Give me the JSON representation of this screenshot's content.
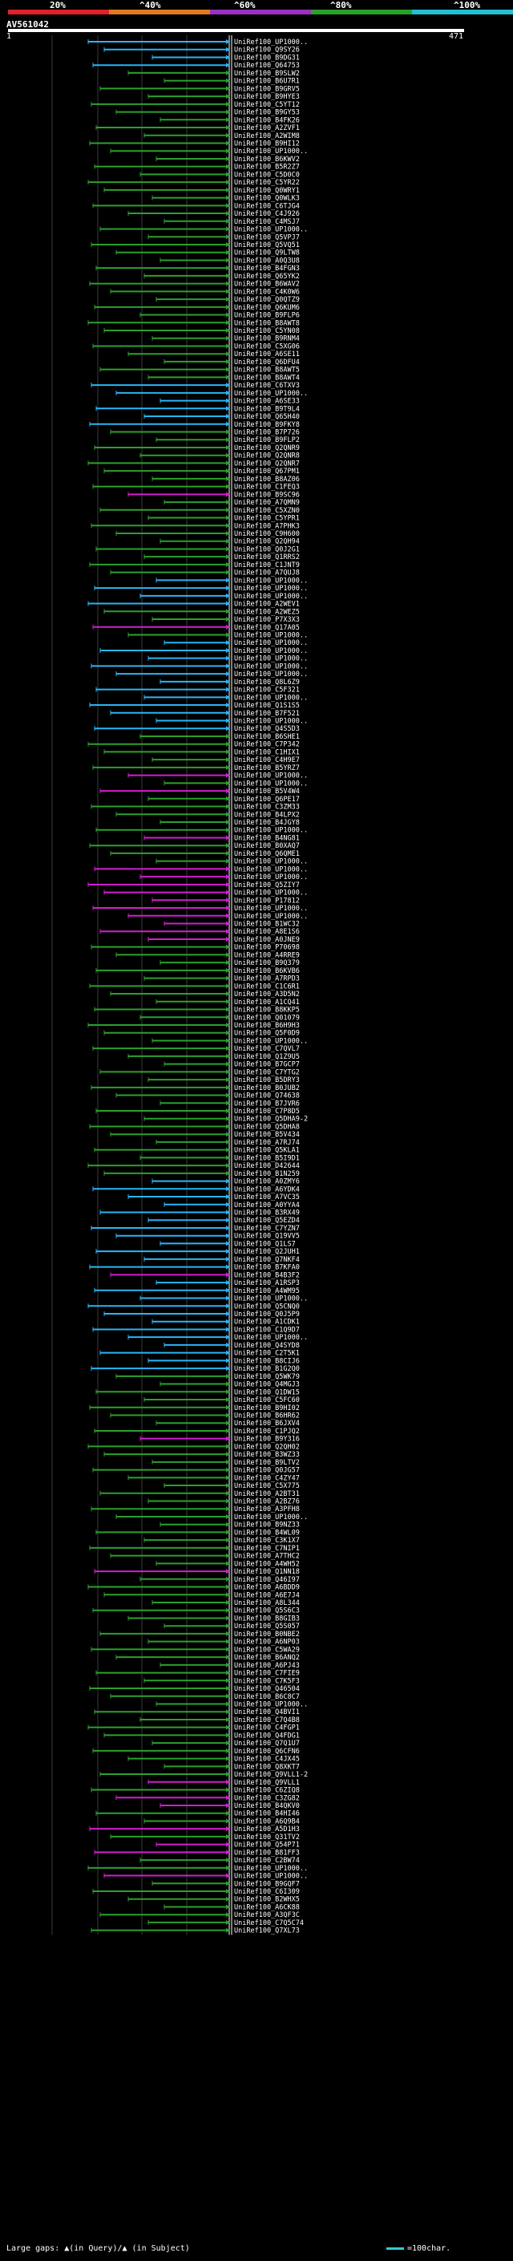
{
  "legend": {
    "colors": [
      "#e0202a",
      "#e07a20",
      "#9b30c0",
      "#2aa02a",
      "#20c0d0"
    ],
    "labels": [
      "20%",
      "^40%",
      "^60%",
      "^80%",
      "^100%"
    ]
  },
  "query": {
    "name": "AV561042",
    "start": "1",
    "end": "471"
  },
  "status_colors": {
    "blue": "#29b6f6",
    "green": "#2ca02c",
    "magenta": "#d21ecf"
  },
  "hits": [
    "UniRef100_UP1000..",
    "UniRef100_Q9SY26",
    "UniRef100_B9DG31",
    "UniRef100_Q64753",
    "UniRef100_B9SLW2",
    "UniRef100_B6U7R1",
    "UniRef100_B9GRV5",
    "UniRef100_B9HYE3",
    "UniRef100_C5YT12",
    "UniRef100_B9GY53",
    "UniRef100_B4FK26",
    "UniRef100_A2ZVF1",
    "UniRef100_A2WIM8",
    "UniRef100_B9HI12",
    "UniRef100_UP1000..",
    "UniRef100_B6KWV2",
    "UniRef100_B5R2Z7",
    "UniRef100_C5D0C0",
    "UniRef100_C5YR22",
    "UniRef100_Q0WRY1",
    "UniRef100_Q0WLK3",
    "UniRef100_C6TJG4",
    "UniRef100_C4J926",
    "UniRef100_C4MSJ7",
    "UniRef100_UP1000..",
    "UniRef100_Q5VPJ7",
    "UniRef100_Q5VQ51",
    "UniRef100_Q9LTW8",
    "UniRef100_A0Q3U8",
    "UniRef100_B4FGN3",
    "UniRef100_Q65YK2",
    "UniRef100_B6WAV2",
    "UniRef100_C4K0W6",
    "UniRef100_Q0QTZ9",
    "UniRef100_Q6KUM6",
    "UniRef100_B9FLP6",
    "UniRef100_B8AWT8",
    "UniRef100_C5YN08",
    "UniRef100_B9RNM4",
    "UniRef100_C5XG06",
    "UniRef100_A6SE11",
    "UniRef100_Q6DFU4",
    "UniRef100_B8AWT5",
    "UniRef100_B8AWT4",
    "UniRef100_C6TXV3",
    "UniRef100_UP1000..",
    "UniRef100_A6SE33",
    "UniRef100_B9T9L4",
    "UniRef100_Q65H40",
    "UniRef100_B9FKY8",
    "UniRef100_B7P726",
    "UniRef100_B9FLP2",
    "UniRef100_Q2QNR9",
    "UniRef100_Q2QNR8",
    "UniRef100_Q2QNR7",
    "UniRef100_Q67PM1",
    "UniRef100_B8AZ06",
    "UniRef100_C1FEQ3",
    "UniRef100_B9SC96",
    "UniRef100_A7QMN9",
    "UniRef100_C5XZN0",
    "UniRef100_C5YPR1",
    "UniRef100_A7PHK3",
    "UniRef100_C9H600",
    "UniRef100_Q2QH94",
    "UniRef100_Q0J2G1",
    "UniRef100_Q1RRS2",
    "UniRef100_C1JNT9",
    "UniRef100_A7QUJ8",
    "UniRef100_UP1000..",
    "UniRef100_UP1000..",
    "UniRef100_UP1000..",
    "UniRef100_A2WEV1",
    "UniRef100_A2WEZ5",
    "UniRef100_P7X3X3",
    "UniRef100_Q17A05",
    "UniRef100_UP1000..",
    "UniRef100_UP1000..",
    "UniRef100_UP1000..",
    "UniRef100_UP1000..",
    "UniRef100_UP1000..",
    "UniRef100_UP1000..",
    "UniRef100_Q8L6Z9",
    "UniRef100_C5F321",
    "UniRef100_UP1000..",
    "UniRef100_Q1S1S5",
    "UniRef100_B7F521",
    "UniRef100_UP1000..",
    "UniRef100_Q4S5D3",
    "UniRef100_B6SHE1",
    "UniRef100_C7P342",
    "UniRef100_C1HIX1",
    "UniRef100_C4H9E7",
    "UniRef100_B5YRZ7",
    "UniRef100_UP1000..",
    "UniRef100_UP1000..",
    "UniRef100_B5V4W4",
    "UniRef100_Q6PE17",
    "UniRef100_C3ZM33",
    "UniRef100_B4LPX2",
    "UniRef100_B4JGY8",
    "UniRef100_UP1000..",
    "UniRef100_B4NG81",
    "UniRef100_B0XAQ7",
    "UniRef100_Q6QME1",
    "UniRef100_UP1000..",
    "UniRef100_UP1000..",
    "UniRef100_UP1000..",
    "UniRef100_Q5ZIY7",
    "UniRef100_UP1000..",
    "UniRef100_P17812",
    "UniRef100_UP1000..",
    "UniRef100_UP1000..",
    "UniRef100_B1WC32",
    "UniRef100_A8E1S6",
    "UniRef100_A0JNE9",
    "UniRef100_P70698",
    "UniRef100_A4RRE9",
    "UniRef100_B9Q379",
    "UniRef100_B6KVB6",
    "UniRef100_A7RPD3",
    "UniRef100_C1C6R1",
    "UniRef100_A3D5N2",
    "UniRef100_A1CQ41",
    "UniRef100_B8KKP5",
    "UniRef100_Q01079",
    "UniRef100_B6H9H3",
    "UniRef100_Q5F0D9",
    "UniRef100_UP1000..",
    "UniRef100_C7QVL7",
    "UniRef100_Q1Z9U5",
    "UniRef100_B7GCP7",
    "UniRef100_C7YTG2",
    "UniRef100_B5DRY3",
    "UniRef100_B0JUB2",
    "UniRef100_Q74638",
    "UniRef100_B7JVR6",
    "UniRef100_C7P8D5",
    "UniRef100_Q5DHA9-2",
    "UniRef100_Q5DHA8",
    "UniRef100_B5V434",
    "UniRef100_A7RJ74",
    "UniRef100_Q5KLA1",
    "UniRef100_B5I9D1",
    "UniRef100_D42644",
    "UniRef100_B1N259",
    "UniRef100_A0ZMY6",
    "UniRef100_A6YDK4",
    "UniRef100_A7VC35",
    "UniRef100_A0YYA4",
    "UniRef100_B3RX49",
    "UniRef100_Q5EZD4",
    "UniRef100_C7YZN7",
    "UniRef100_Q19VV5",
    "UniRef100_Q1LS7",
    "UniRef100_Q2JUH1",
    "UniRef100_Q7NKF4",
    "UniRef100_B7KFA0",
    "UniRef100_B4B3F2",
    "UniRef100_A1RSP3",
    "UniRef100_A4WM95",
    "UniRef100_UP1000..",
    "UniRef100_Q5CNQ0",
    "UniRef100_Q0J5P9",
    "UniRef100_A1CDK1",
    "UniRef100_C1Q9D7",
    "UniRef100_UP1000..",
    "UniRef100_Q4SYD8",
    "UniRef100_C2T5K1",
    "UniRef100_B8CIJ6",
    "UniRef100_B1G2Q0",
    "UniRef100_Q5WK79",
    "UniRef100_Q4MGJ3",
    "UniRef100_Q1DW15",
    "UniRef100_C5FC60",
    "UniRef100_B9HI02",
    "UniRef100_B6HR62",
    "UniRef100_B6JXV4",
    "UniRef100_C1PJQ2",
    "UniRef100_B9Y316",
    "UniRef100_Q2QH02",
    "UniRef100_B3WZ33",
    "UniRef100_B9LTV2",
    "UniRef100_Q0JG57",
    "UniRef100_C4ZY47",
    "UniRef100_C5X775",
    "UniRef100_A2BT31",
    "UniRef100_A2BZ76",
    "UniRef100_A3PFH8",
    "UniRef100_UP1000..",
    "UniRef100_B9NZ33",
    "UniRef100_B4WL09",
    "UniRef100_C3K1X7",
    "UniRef100_C7NIP1",
    "UniRef100_A7THC2",
    "UniRef100_A4WH52",
    "UniRef100_Q1NN18",
    "UniRef100_Q46I97",
    "UniRef100_A6BDD9",
    "UniRef100_A6E7J4",
    "UniRef100_A8L344",
    "UniRef100_Q5S6C3",
    "UniRef100_B8GIB3",
    "UniRef100_Q5S057",
    "UniRef100_B0NBE2",
    "UniRef100_A6NP03",
    "UniRef100_C5WA29",
    "UniRef100_B6ANQ2",
    "UniRef100_A6PJ43",
    "UniRef100_C7FIE9",
    "UniRef100_C7K5F3",
    "UniRef100_Q46504",
    "UniRef100_B6C8C7",
    "UniRef100_UP1000..",
    "UniRef100_Q4BVI1",
    "UniRef100_C7Q4B8",
    "UniRef100_C4FGP1",
    "UniRef100_Q4FDG1",
    "UniRef100_Q7Q1U7",
    "UniRef100_Q6CFN6",
    "UniRef100_C4JX45",
    "UniRef100_Q8XKT7",
    "UniRef100_Q9VLL1-2",
    "UniRef100_Q9VLL1",
    "UniRef100_C6ZIQ8",
    "UniRef100_C3ZG82",
    "UniRef100_B4QKV0",
    "UniRef100_B4HI46",
    "UniRef100_A6Q9B4",
    "UniRef100_A5D1H3",
    "UniRef100_Q31TV2",
    "UniRef100_Q54P71",
    "UniRef100_B81FF3",
    "UniRef100_C2BW74",
    "UniRef100_UP1000..",
    "UniRef100_UP1000..",
    "UniRef100_B9GQF7",
    "UniRef100_C6I309",
    "UniRef100_B2WHX5",
    "UniRef100_A6CK88",
    "UniRef100_A3QF3C",
    "UniRef100_C7Q5C74",
    "UniRef100_Q7XL73"
  ],
  "footer": {
    "gaps": "Large gaps: ▲(in Query)/▲ (in Subject)",
    "scale": "=100char."
  }
}
